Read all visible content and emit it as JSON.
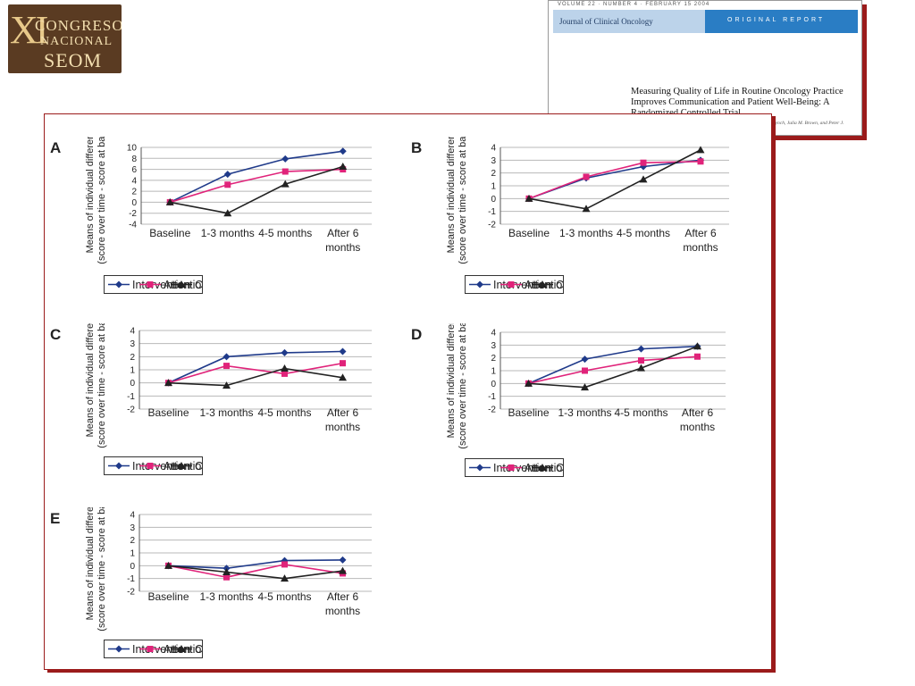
{
  "logo": {
    "roman": "XI",
    "line1": "CONGRESO",
    "line2": "NACIONAL",
    "line3": "SEOM"
  },
  "paper": {
    "volume_line": "VOLUME 22 · NUMBER 4 · FEBRUARY 15 2004",
    "journal": "Journal of Clinical Oncology",
    "report_type": "ORIGINAL REPORT",
    "title": "Measuring Quality of Life in Routine Oncology Practice Improves Communication and Patient Well-Being: A Randomized Controlled Trial",
    "authors": "Galina Velikova, Laura Booth, Adam B. Smith, Paul M. Brown, Pamela Lynch, Julia M. Brown, and Peter J. Selby"
  },
  "colors": {
    "intervention": "#1f3a8a",
    "attention_control": "#e0237a",
    "control": "#222222",
    "frame": "#9b1b1b"
  },
  "chart_data": [
    {
      "panel": "A",
      "type": "line",
      "ylabel": "Means of individual differences (score over time - score at baseline)",
      "categories": [
        "Baseline",
        "1-3 months",
        "4-5 months",
        "After 6 months"
      ],
      "yticks": [
        10,
        8,
        6,
        4,
        2,
        0,
        -2,
        -4
      ],
      "ylim": [
        -4,
        10
      ],
      "grid": true,
      "series": [
        {
          "name": "Intervention",
          "values": [
            0,
            5.1,
            7.9,
            9.3
          ]
        },
        {
          "name": "Attention-control",
          "values": [
            0,
            3.2,
            5.6,
            6.0
          ]
        },
        {
          "name": "Control",
          "values": [
            0,
            -2.0,
            3.3,
            6.5
          ]
        }
      ]
    },
    {
      "panel": "B",
      "type": "line",
      "ylabel": "Means of individual differences (score over time - score at baseline)",
      "categories": [
        "Baseline",
        "1-3 months",
        "4-5 months",
        "After 6 months"
      ],
      "yticks": [
        4,
        3,
        2,
        1,
        0,
        -1,
        -2
      ],
      "ylim": [
        -2,
        4
      ],
      "grid": true,
      "series": [
        {
          "name": "Intervention",
          "values": [
            0,
            1.6,
            2.5,
            3.0
          ]
        },
        {
          "name": "Attention-control",
          "values": [
            0,
            1.7,
            2.8,
            2.9
          ]
        },
        {
          "name": "Control",
          "values": [
            0,
            -0.8,
            1.5,
            3.8
          ]
        }
      ]
    },
    {
      "panel": "C",
      "type": "line",
      "ylabel": "Means of individual differences (score over time - score at baseline)",
      "categories": [
        "Baseline",
        "1-3 months",
        "4-5 months",
        "After 6 months"
      ],
      "yticks": [
        4,
        3,
        2,
        1,
        0,
        -1,
        -2
      ],
      "ylim": [
        -2,
        4
      ],
      "grid": true,
      "series": [
        {
          "name": "Intervention",
          "values": [
            0,
            2.0,
            2.3,
            2.4
          ]
        },
        {
          "name": "Attention-control",
          "values": [
            0,
            1.3,
            0.7,
            1.5
          ]
        },
        {
          "name": "Control",
          "values": [
            0,
            -0.2,
            1.1,
            0.4
          ]
        }
      ]
    },
    {
      "panel": "D",
      "type": "line",
      "ylabel": "Means of individual differences (score over time - score at baseline)",
      "categories": [
        "Baseline",
        "1-3 months",
        "4-5 months",
        "After 6 months"
      ],
      "yticks": [
        4,
        3,
        2,
        1,
        0,
        -1,
        -2
      ],
      "ylim": [
        -2,
        4
      ],
      "grid": true,
      "series": [
        {
          "name": "Intervention",
          "values": [
            0,
            1.9,
            2.7,
            2.9
          ]
        },
        {
          "name": "Attention-control",
          "values": [
            0,
            1.0,
            1.8,
            2.1
          ]
        },
        {
          "name": "Control",
          "values": [
            0,
            -0.3,
            1.2,
            2.9
          ]
        }
      ]
    },
    {
      "panel": "E",
      "type": "line",
      "ylabel": "Means of individual differences (score over time - score at baseline)",
      "categories": [
        "Baseline",
        "1-3 months",
        "4-5 months",
        "After 6 months"
      ],
      "yticks": [
        4,
        3,
        2,
        1,
        0,
        -1,
        -2
      ],
      "ylim": [
        -2,
        4
      ],
      "grid": true,
      "series": [
        {
          "name": "Intervention",
          "values": [
            0,
            -0.2,
            0.4,
            0.45
          ]
        },
        {
          "name": "Attention-control",
          "values": [
            0,
            -0.9,
            0.1,
            -0.6
          ]
        },
        {
          "name": "Control",
          "values": [
            0,
            -0.5,
            -1.0,
            -0.4
          ]
        }
      ]
    }
  ]
}
